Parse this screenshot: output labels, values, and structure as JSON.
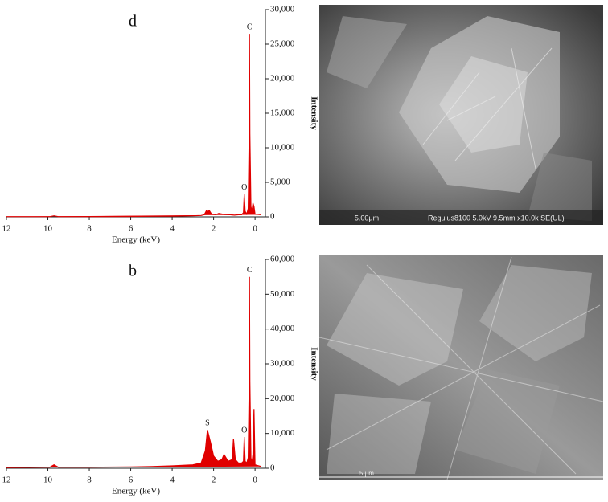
{
  "chart_data": [
    {
      "type": "line",
      "label": "d",
      "xlabel": "Energy (keV)",
      "ylabel": "Intensity",
      "color": "#e00000",
      "x": [
        -0.3,
        0,
        0.05,
        0.1,
        0.15,
        0.2,
        0.25,
        0.27,
        0.29,
        0.33,
        0.4,
        0.48,
        0.52,
        0.56,
        0.65,
        0.8,
        1.0,
        1.2,
        1.5,
        1.75,
        1.9,
        2.1,
        2.2,
        2.3,
        2.35,
        2.45,
        2.6,
        3,
        4,
        5,
        6,
        8,
        9.5,
        9.7,
        9.9,
        12
      ],
      "values": [
        300,
        400,
        1500,
        2000,
        800,
        1500,
        12000,
        26500,
        10000,
        1200,
        400,
        800,
        3300,
        600,
        300,
        300,
        250,
        300,
        350,
        500,
        300,
        400,
        900,
        800,
        900,
        300,
        200,
        150,
        100,
        80,
        60,
        40,
        40,
        150,
        40,
        30
      ],
      "annotations": [
        {
          "text": "C",
          "x": 0.27
        },
        {
          "text": "O",
          "x": 0.52
        }
      ],
      "xlim": [
        -0.5,
        12
      ],
      "xticks": [
        0,
        2,
        4,
        6,
        8,
        10,
        12
      ],
      "ylim": [
        0,
        30000
      ],
      "yticks": [
        0,
        {
          "value": 5000,
          "label": "5,000"
        },
        {
          "value": 10000,
          "label": "10,000"
        },
        {
          "value": 15000,
          "label": "15,000"
        },
        {
          "value": 20000,
          "label": "20,000"
        },
        {
          "value": 25000,
          "label": "25,000"
        },
        {
          "value": 30000,
          "label": "30,000"
        }
      ]
    },
    {
      "type": "line",
      "label": "b",
      "xlabel": "Energy (keV)",
      "ylabel": "Intensity",
      "color": "#e00000",
      "x": [
        -0.3,
        0,
        0.05,
        0.1,
        0.15,
        0.2,
        0.25,
        0.27,
        0.29,
        0.33,
        0.4,
        0.48,
        0.52,
        0.56,
        0.65,
        0.8,
        0.95,
        1.04,
        1.1,
        1.3,
        1.5,
        1.6,
        1.8,
        2.0,
        2.15,
        2.3,
        2.4,
        2.6,
        3,
        4,
        5,
        6,
        8,
        9.5,
        9.7,
        9.9,
        12
      ],
      "values": [
        500,
        1000,
        17000,
        4000,
        1500,
        3000,
        25000,
        55000,
        20000,
        3000,
        1500,
        2000,
        9000,
        2000,
        1500,
        1500,
        2500,
        8500,
        2500,
        2000,
        4000,
        2500,
        2000,
        3500,
        7500,
        11000,
        5000,
        1500,
        1000,
        700,
        500,
        400,
        300,
        300,
        1000,
        300,
        200
      ],
      "annotations": [
        {
          "text": "C",
          "x": 0.27
        },
        {
          "text": "O",
          "x": 0.52
        },
        {
          "text": "S",
          "x": 2.3
        }
      ],
      "xlim": [
        -0.5,
        12
      ],
      "xticks": [
        0,
        2,
        4,
        6,
        8,
        10,
        12
      ],
      "ylim": [
        0,
        60000
      ],
      "yticks": [
        0,
        {
          "value": 10000,
          "label": "10,000"
        },
        {
          "value": 20000,
          "label": "20,000"
        },
        {
          "value": 30000,
          "label": "30,000"
        },
        {
          "value": 40000,
          "label": "40,000"
        },
        {
          "value": 50000,
          "label": "50,000"
        },
        {
          "value": 60000,
          "label": "60,000"
        }
      ]
    }
  ],
  "images": [
    {
      "caption": "Regulus8100 5.0kV 9.5mm x10.0k SE(UL)",
      "scale": "5.00μm"
    },
    {
      "scale": "5 μm"
    }
  ]
}
